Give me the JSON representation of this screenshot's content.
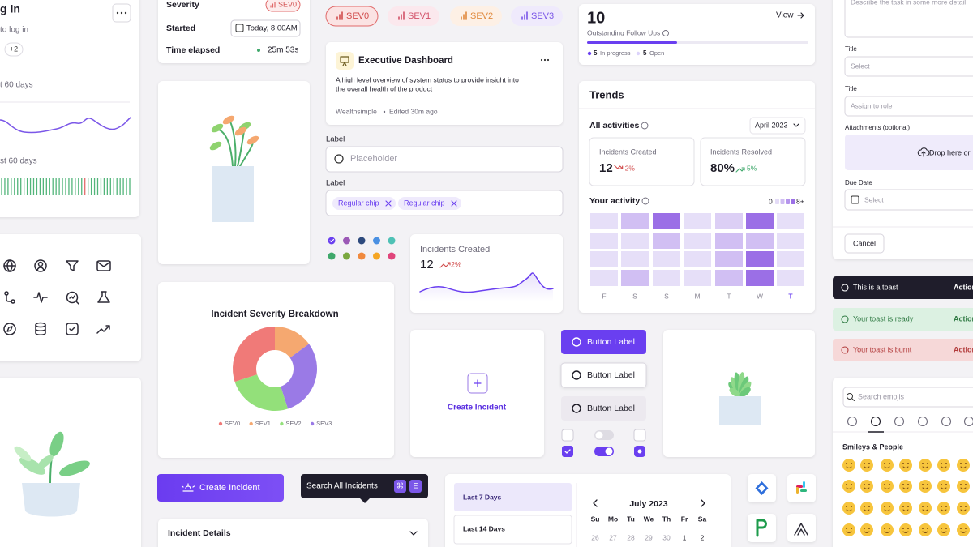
{
  "login": {
    "title": "g In",
    "subtitle": "to log in",
    "count": "+2",
    "period1": "t 60 days",
    "period2": "st 60 days"
  },
  "status": {
    "rows": [
      {
        "label": "Severity",
        "value": "SEV0"
      },
      {
        "label": "Started",
        "value": "Today, 8:00AM"
      },
      {
        "label": "Time elapsed",
        "value": "25m 53s"
      }
    ]
  },
  "sev_chips": [
    "SEV0",
    "SEV1",
    "SEV2",
    "SEV3"
  ],
  "dashboard": {
    "title": "Executive Dashboard",
    "description": [
      "A high level overview of system status to provide insight into",
      "the overall health of the product"
    ],
    "owner": "Wealthsimple",
    "edited": "Edited 30m ago"
  },
  "inputs": {
    "label1": "Label",
    "placeholder": "Placeholder",
    "label2": "Label",
    "chips": [
      "Regular chip",
      "Regular chip"
    ]
  },
  "incidents_card": {
    "title": "Incidents Created",
    "value": "12",
    "change": "2%"
  },
  "breakdown": {
    "title": "Incident Severity Breakdown",
    "segments": [
      {
        "name": "SEV0",
        "color": "#f07a78",
        "value": 30
      },
      {
        "name": "SEV1",
        "color": "#f5a870",
        "value": 15
      },
      {
        "name": "SEV2",
        "color": "#93e07a",
        "value": 25
      },
      {
        "name": "SEV3",
        "color": "#9a7ae6",
        "value": 30
      }
    ]
  },
  "create_card": {
    "label": "Create Incident"
  },
  "buttons": [
    "Button Label",
    "Button Label",
    "Button Label"
  ],
  "follow_ups": {
    "count": "10",
    "link": "View",
    "label": "Outstanding Follow Ups",
    "in_progress": {
      "count": "5",
      "label": "In progress"
    },
    "open": {
      "count": "5",
      "label": "Open"
    }
  },
  "trends": {
    "title": "Trends",
    "filter": "All activities",
    "month": "April 2023",
    "stats": [
      {
        "label": "Incidents Created",
        "value": "12",
        "change": "2%"
      },
      {
        "label": "Incidents Resolved",
        "value": "80%",
        "change": "5%"
      }
    ],
    "activity": {
      "title": "Your activity",
      "scale_min": "0",
      "scale_max": "8+",
      "max_level": 8,
      "days": [
        "F",
        "S",
        "S",
        "M",
        "T",
        "W",
        "T"
      ],
      "cells": [
        [
          1,
          3,
          8,
          1,
          2,
          8,
          1
        ],
        [
          1,
          1,
          3,
          1,
          3,
          3,
          1
        ],
        [
          1,
          1,
          1,
          1,
          3,
          8,
          1
        ],
        [
          1,
          3,
          1,
          1,
          3,
          8,
          1
        ]
      ]
    }
  },
  "form": {
    "description_placeholder": "Describe the task in some more detail",
    "fields": [
      {
        "label": "Title",
        "placeholder": "Select"
      },
      {
        "label": "Title",
        "placeholder": "Assign to role"
      }
    ],
    "attachments": {
      "label": "Attachments (optional)",
      "drop": "Drop here or"
    },
    "due_date": {
      "label": "Due Date",
      "placeholder": "Select"
    },
    "cancel": "Cancel"
  },
  "toasts": [
    {
      "text": "This is a toast",
      "action": "Action"
    },
    {
      "text": "Your toast is ready",
      "action": "Action"
    },
    {
      "text": "Your toast is burnt",
      "action": "Action"
    }
  ],
  "emoji": {
    "search": "Search emojis",
    "section": "Smileys & People"
  },
  "create_button": "Create Incident",
  "search_tooltip": {
    "text": "Search All Incidents",
    "keys": [
      "⌘",
      "E"
    ]
  },
  "incident_details": "Incident Details",
  "date_picker": {
    "presets": [
      "Last 7 Days",
      "Last 14 Days"
    ],
    "month": "July 2023",
    "weekdays": [
      "Su",
      "Mo",
      "Tu",
      "We",
      "Th",
      "Fr",
      "Sa"
    ],
    "days": [
      "26",
      "27",
      "28",
      "29",
      "30",
      "1",
      "2"
    ]
  }
}
